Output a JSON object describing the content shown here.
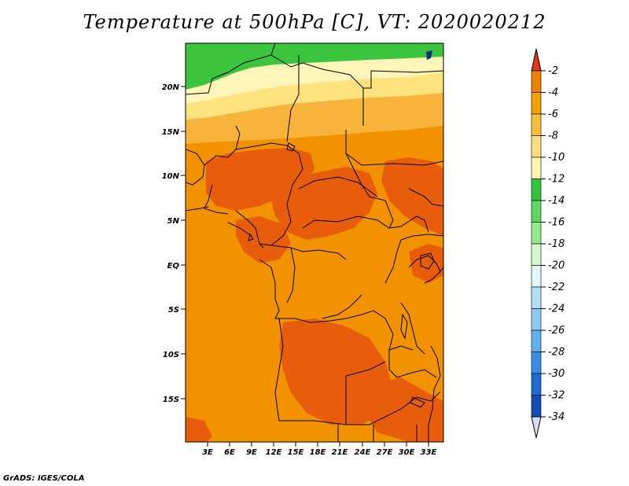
{
  "title": "Temperature at 500hPa [C], VT: 2020020212",
  "credit": "GrADS: IGES/COLA",
  "lat_ticks": [
    "20N",
    "15N",
    "10N",
    "5N",
    "EQ",
    "5S",
    "10S",
    "15S"
  ],
  "lon_ticks": [
    "3E",
    "6E",
    "9E",
    "12E",
    "15E",
    "18E",
    "21E",
    "24E",
    "27E",
    "30E",
    "33E"
  ],
  "colorbar": {
    "labels": [
      "-2",
      "-4",
      "-6",
      "-8",
      "-10",
      "-12",
      "-14",
      "-16",
      "-18",
      "-20",
      "-22",
      "-24",
      "-26",
      "-28",
      "-30",
      "-32",
      "-34"
    ],
    "colors": [
      "#e65500",
      "#f08000",
      "#f5a300",
      "#fbbf3a",
      "#fde07d",
      "#fef5b0",
      "#33c43a",
      "#5fd861",
      "#95ea8e",
      "#d2f9c8",
      "#e4f6fb",
      "#b4def6",
      "#8ecaf4",
      "#60b0ee",
      "#3a8ee4",
      "#1f6bd6",
      "#0f4cb8",
      "#0a2f8c"
    ],
    "top_cap_color": "#e03a10",
    "bottom_cap_color": "#d8dcf8"
  },
  "map_colors": {
    "warm": "#e85d0c",
    "orange": "#f39200",
    "light_orange": "#f8b33a",
    "pale_yellow": "#fde27e",
    "cream": "#fef5b8",
    "green": "#3bc43e",
    "dark_green": "#2fb538",
    "navy": "#0a2f8c"
  }
}
